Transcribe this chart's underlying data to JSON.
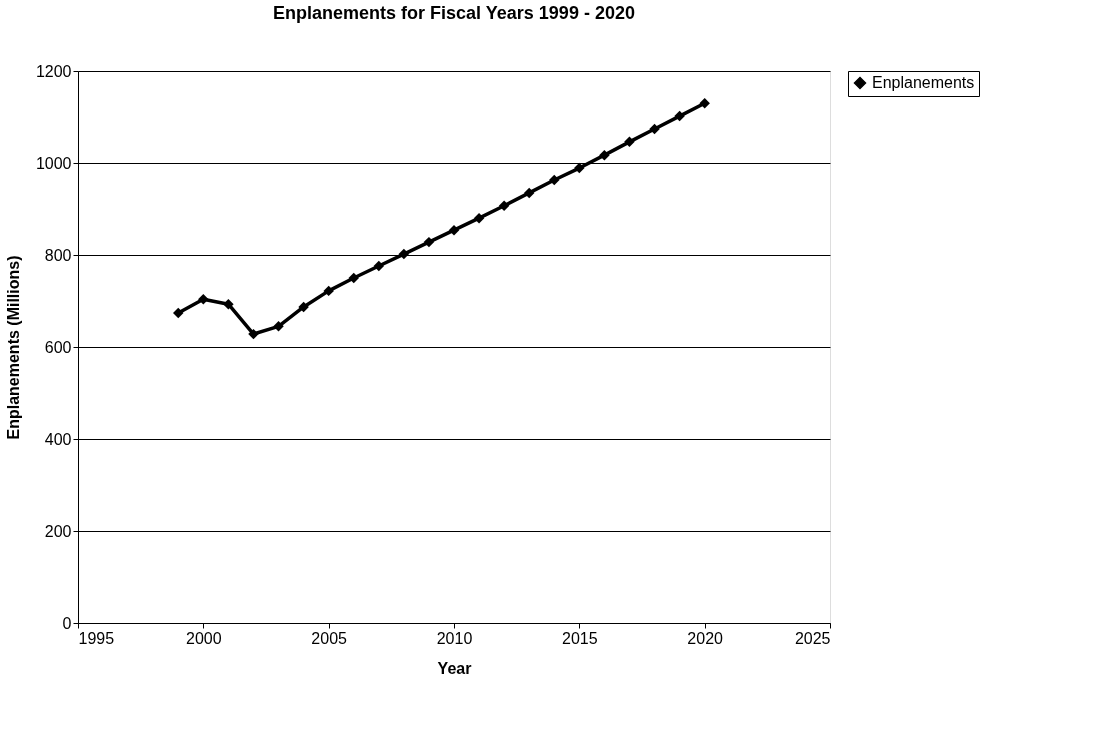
{
  "chart_data": {
    "type": "line",
    "title": "Enplanements for Fiscal Years 1999 - 2020",
    "xlabel": "Year",
    "ylabel": "Enplanements (Millions)",
    "x": [
      1999,
      2000,
      2001,
      2002,
      2003,
      2004,
      2005,
      2006,
      2007,
      2008,
      2009,
      2010,
      2011,
      2012,
      2013,
      2014,
      2015,
      2016,
      2017,
      2018,
      2019,
      2020
    ],
    "series": [
      {
        "name": "Enplanements",
        "color": "#000000",
        "values": [
          674,
          704,
          693,
          628,
          645,
          687,
          722,
          750,
          776,
          802,
          828,
          854,
          880,
          907,
          935,
          963,
          989,
          1017,
          1046,
          1074,
          1102,
          1130
        ]
      }
    ],
    "xlim": [
      1995,
      2025
    ],
    "xticks": [
      1995,
      2000,
      2005,
      2010,
      2015,
      2020,
      2025
    ],
    "ylim": [
      0,
      1200
    ],
    "yticks": [
      0,
      200,
      400,
      600,
      800,
      1000,
      1200
    ],
    "grid": "y",
    "legend": "right",
    "marker": "diamond",
    "line_style": "solid"
  }
}
